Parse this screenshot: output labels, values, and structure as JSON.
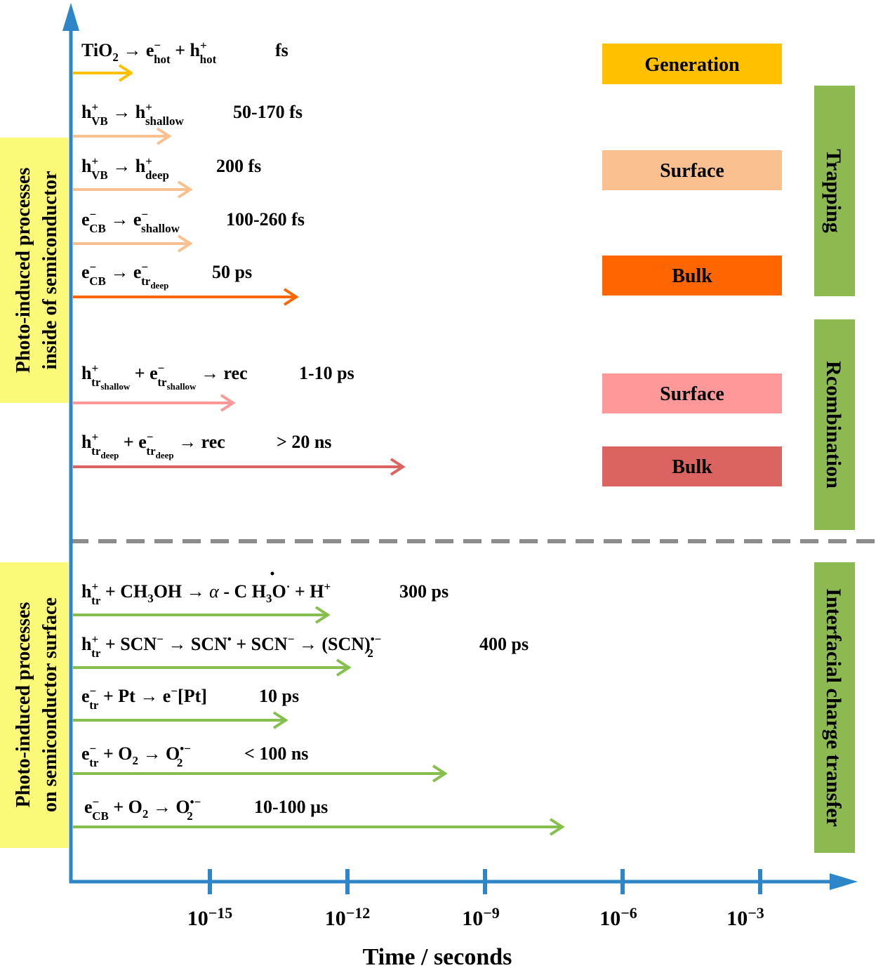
{
  "colors": {
    "axis": "#2E86C8",
    "generation": "#FFC000",
    "trap_surface": "#FAC090",
    "trap_bulk": "#FF6600",
    "rec_surface": "#FF9999",
    "rec_bulk": "#DC6460",
    "green_band": "#8DBA50",
    "green_arrow": "#86BF4E",
    "yellow_band": "#FAFA78",
    "dash": "#8C8C8C"
  },
  "labels": {
    "inside_line1": "Photo-induced processes",
    "inside_line2": "inside of semiconductor",
    "surface_line1": "Photo-induced processes",
    "surface_line2": "on semiconductor surface",
    "generation": "Generation",
    "trap_surface": "Surface",
    "trap_bulk": "Bulk",
    "rec_surface": "Surface",
    "rec_bulk": "Bulk",
    "trapping": "Trapping",
    "recombination": "Rcombination",
    "interfacial": "Interfacial charge transfer"
  },
  "axis": {
    "title": "Time / seconds",
    "ticks": [
      {
        "base": "10",
        "exp": "−15"
      },
      {
        "base": "10",
        "exp": "−12"
      },
      {
        "base": "10",
        "exp": "−9"
      },
      {
        "base": "10",
        "exp": "−6"
      },
      {
        "base": "10",
        "exp": "−3"
      }
    ]
  },
  "processes": {
    "gen": {
      "time": "fs"
    },
    "vb_shallow": {
      "time": "50-170 fs"
    },
    "vb_deep": {
      "time": "200 fs"
    },
    "cb_shallow": {
      "time": "100-260 fs"
    },
    "cb_deep": {
      "time": "50 ps"
    },
    "rec_shallow": {
      "time": "1-10 ps"
    },
    "rec_deep": {
      "time": "> 20 ns"
    },
    "methanol": {
      "time": "300 ps"
    },
    "scn": {
      "time": "400 ps"
    },
    "pt": {
      "time": "10 ps"
    },
    "o2_tr": {
      "time": "< 100 ns"
    },
    "o2_cb": {
      "time": "10-100 µs"
    }
  }
}
